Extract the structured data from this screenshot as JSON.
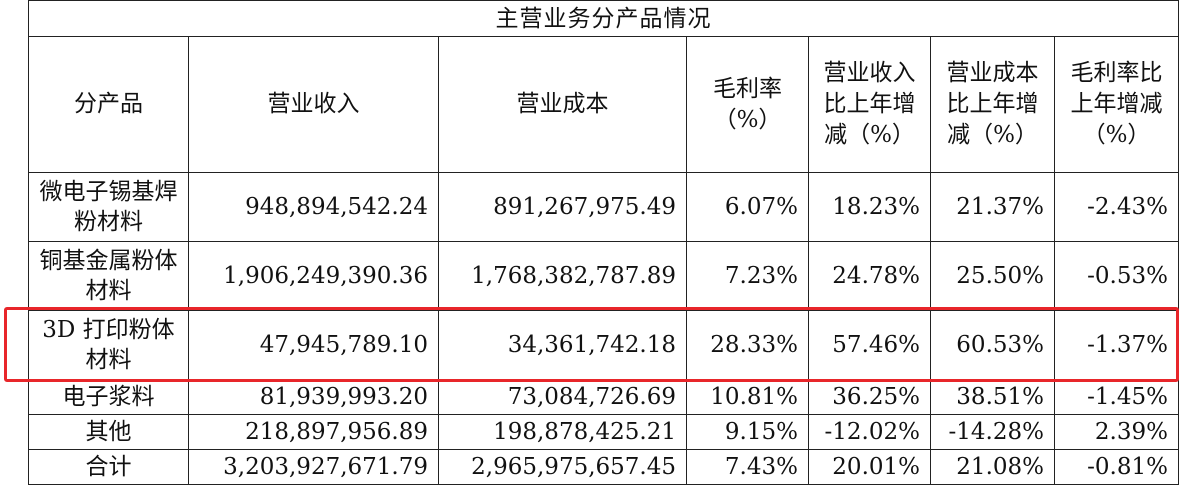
{
  "table": {
    "caption": "主营业务分产品情况",
    "headers": [
      "分产品",
      "营业收入",
      "营业成本",
      "毛利率（%）",
      "营业收入比上年增减（%）",
      "营业成本比上年增减（%）",
      "毛利率比上年增减（%）"
    ],
    "rows": [
      {
        "product": "微电子锡基焊粉材料",
        "revenue": "948,894,542.24",
        "cost": "891,267,975.49",
        "gross_margin": "6.07%",
        "revenue_change": "18.23%",
        "cost_change": "21.37%",
        "margin_change": "-2.43%"
      },
      {
        "product": "铜基金属粉体材料",
        "revenue": "1,906,249,390.36",
        "cost": "1,768,382,787.89",
        "gross_margin": "7.23%",
        "revenue_change": "24.78%",
        "cost_change": "25.50%",
        "margin_change": "-0.53%"
      },
      {
        "product": "3D 打印粉体材料",
        "revenue": "47,945,789.10",
        "cost": "34,361,742.18",
        "gross_margin": "28.33%",
        "revenue_change": "57.46%",
        "cost_change": "60.53%",
        "margin_change": "-1.37%"
      },
      {
        "product": "电子浆料",
        "revenue": "81,939,993.20",
        "cost": "73,084,726.69",
        "gross_margin": "10.81%",
        "revenue_change": "36.25%",
        "cost_change": "38.51%",
        "margin_change": "-1.45%"
      },
      {
        "product": "其他",
        "revenue": "218,897,956.89",
        "cost": "198,878,425.21",
        "gross_margin": "9.15%",
        "revenue_change": "-12.02%",
        "cost_change": "-14.28%",
        "margin_change": "2.39%"
      },
      {
        "product": "合计",
        "revenue": "3,203,927,671.79",
        "cost": "2,965,975,657.45",
        "gross_margin": "7.43%",
        "revenue_change": "20.01%",
        "cost_change": "21.08%",
        "margin_change": "-0.81%"
      }
    ]
  },
  "highlight": {
    "color": "#e8262a",
    "row_index": 2
  }
}
